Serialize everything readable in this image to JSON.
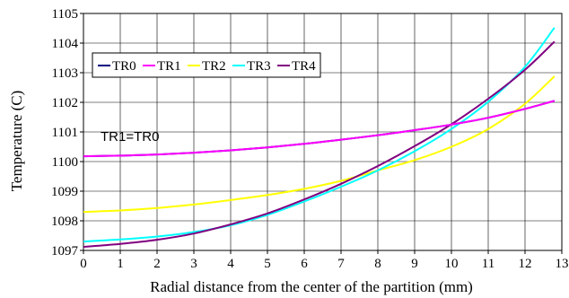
{
  "chart_data": {
    "type": "line",
    "title": "",
    "xlabel": "Radial distance from the center of the  partition (mm)",
    "ylabel": "Temperature (C)",
    "xlim": [
      0,
      13
    ],
    "ylim": [
      1097,
      1105
    ],
    "xticks": [
      0,
      1,
      2,
      3,
      4,
      5,
      6,
      7,
      8,
      9,
      10,
      11,
      12,
      13
    ],
    "yticks": [
      1097,
      1098,
      1099,
      1100,
      1101,
      1102,
      1103,
      1104,
      1105
    ],
    "grid": true,
    "legend_placement": "top-left",
    "annotation": "TR1=TR0",
    "x": [
      0,
      1,
      2,
      3,
      4,
      5,
      6,
      7,
      8,
      9,
      10,
      11,
      12,
      12.8
    ],
    "series": [
      {
        "name": "TR0",
        "color": "#000080",
        "values": [
          1100.18,
          1100.2,
          1100.24,
          1100.3,
          1100.38,
          1100.48,
          1100.6,
          1100.74,
          1100.89,
          1101.06,
          1101.25,
          1101.48,
          1101.78,
          1102.05
        ]
      },
      {
        "name": "TR1",
        "color": "#ff00ff",
        "values": [
          1100.18,
          1100.2,
          1100.24,
          1100.3,
          1100.38,
          1100.48,
          1100.6,
          1100.74,
          1100.89,
          1101.06,
          1101.25,
          1101.48,
          1101.78,
          1102.05
        ]
      },
      {
        "name": "TR2",
        "color": "#ffff00",
        "values": [
          1098.3,
          1098.35,
          1098.43,
          1098.55,
          1098.7,
          1098.87,
          1099.08,
          1099.35,
          1099.7,
          1100.05,
          1100.5,
          1101.1,
          1101.95,
          1102.88
        ]
      },
      {
        "name": "TR3",
        "color": "#00ffff",
        "values": [
          1097.3,
          1097.37,
          1097.47,
          1097.62,
          1097.85,
          1098.2,
          1098.65,
          1099.15,
          1099.7,
          1100.35,
          1101.1,
          1102.02,
          1103.2,
          1104.52
        ]
      },
      {
        "name": "TR4",
        "color": "#800080",
        "values": [
          1097.12,
          1097.22,
          1097.36,
          1097.57,
          1097.88,
          1098.25,
          1098.72,
          1099.25,
          1099.85,
          1100.52,
          1101.26,
          1102.12,
          1103.1,
          1104.05
        ]
      }
    ]
  }
}
